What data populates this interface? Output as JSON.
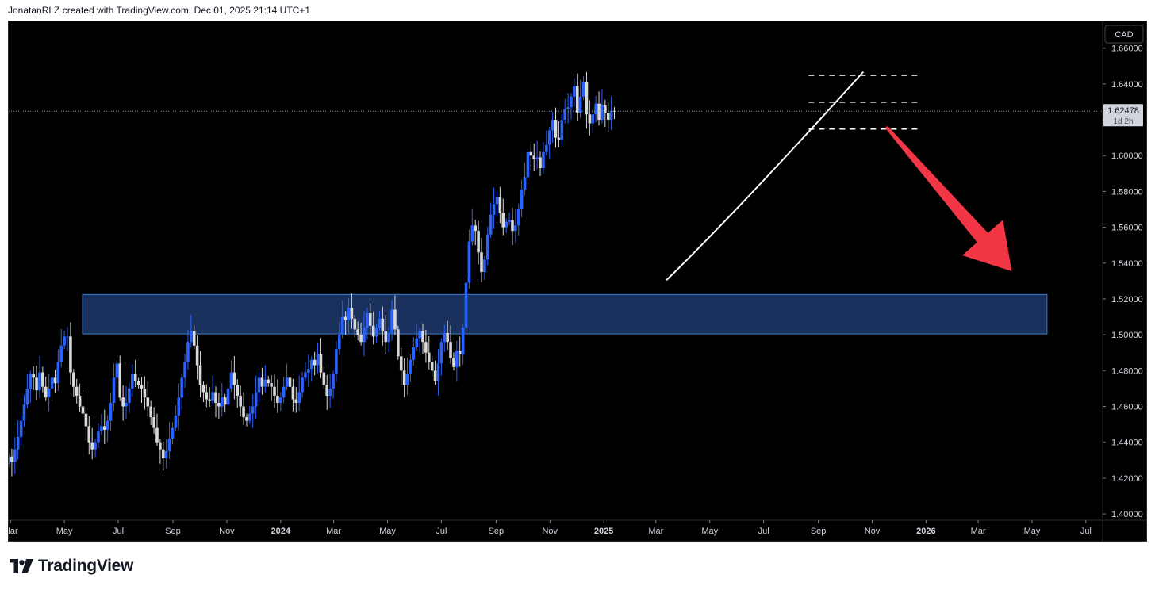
{
  "header": {
    "caption": "JonatanRLZ created with TradingView.com, Dec 01, 2025 21:14 UTC+1"
  },
  "brand": {
    "name": "TradingView",
    "icon": "tradingview-logo-icon"
  },
  "colors": {
    "background": "#000000",
    "bull": "#2962ff",
    "bear": "#d9d9d9",
    "zone_fill": "#1e3a6e",
    "zone_border": "#3d7fd1",
    "arrow": "#f23645",
    "curve": "#ffffff",
    "levels": "#ffffff"
  },
  "chart_data": {
    "type": "candlestick",
    "currency": "CAD",
    "timeframe": "1W",
    "current_price": 1.62478,
    "countdown": "1d 2h",
    "y_ticks": [
      1.66,
      1.64,
      1.62,
      1.6,
      1.58,
      1.56,
      1.54,
      1.52,
      1.5,
      1.48,
      1.46,
      1.44,
      1.42,
      1.4
    ],
    "y_tick_labels": [
      "1.66000",
      "1.64000",
      "1.62000",
      "1.60000",
      "1.58000",
      "1.56000",
      "1.54000",
      "1.52000",
      "1.50000",
      "1.48000",
      "1.46000",
      "1.44000",
      "1.42000",
      "1.40000"
    ],
    "ylim": [
      1.3965,
      1.6749
    ],
    "x_range": [
      "2023-02-27",
      "2026-07-20"
    ],
    "x_ticks": [
      {
        "label": "Mar",
        "date": "2023-03-01",
        "bold": false
      },
      {
        "label": "May",
        "date": "2023-05-01",
        "bold": false
      },
      {
        "label": "Jul",
        "date": "2023-07-01",
        "bold": false
      },
      {
        "label": "Sep",
        "date": "2023-09-01",
        "bold": false
      },
      {
        "label": "Nov",
        "date": "2023-11-01",
        "bold": false
      },
      {
        "label": "2024",
        "date": "2024-01-01",
        "bold": true
      },
      {
        "label": "Mar",
        "date": "2024-03-01",
        "bold": false
      },
      {
        "label": "May",
        "date": "2024-05-01",
        "bold": false
      },
      {
        "label": "Jul",
        "date": "2024-07-01",
        "bold": false
      },
      {
        "label": "Sep",
        "date": "2024-09-01",
        "bold": false
      },
      {
        "label": "Nov",
        "date": "2024-11-01",
        "bold": false
      },
      {
        "label": "2025",
        "date": "2025-01-01",
        "bold": true
      },
      {
        "label": "Mar",
        "date": "2025-03-01",
        "bold": false
      },
      {
        "label": "May",
        "date": "2025-05-01",
        "bold": false
      },
      {
        "label": "Jul",
        "date": "2025-07-01",
        "bold": false
      },
      {
        "label": "Sep",
        "date": "2025-09-01",
        "bold": false
      },
      {
        "label": "Nov",
        "date": "2025-11-01",
        "bold": false
      },
      {
        "label": "2026",
        "date": "2026-01-01",
        "bold": true
      },
      {
        "label": "Mar",
        "date": "2026-03-01",
        "bold": false
      },
      {
        "label": "May",
        "date": "2026-05-01",
        "bold": false
      },
      {
        "label": "Jul",
        "date": "2026-07-01",
        "bold": false
      }
    ],
    "series_start": "2023-02-27",
    "period_days": 3.5,
    "closes": [
      1.432,
      1.429,
      1.436,
      1.443,
      1.452,
      1.461,
      1.47,
      1.478,
      1.476,
      1.469,
      1.479,
      1.471,
      1.465,
      1.47,
      1.476,
      1.473,
      1.485,
      1.494,
      1.499,
      1.499,
      1.479,
      1.471,
      1.466,
      1.46,
      1.456,
      1.449,
      1.44,
      1.436,
      1.44,
      1.446,
      1.449,
      1.447,
      1.452,
      1.462,
      1.476,
      1.484,
      1.465,
      1.46,
      1.462,
      1.47,
      1.478,
      1.474,
      1.472,
      1.47,
      1.465,
      1.46,
      1.454,
      1.448,
      1.44,
      1.436,
      1.431,
      1.435,
      1.442,
      1.448,
      1.455,
      1.465,
      1.476,
      1.485,
      1.496,
      1.502,
      1.494,
      1.483,
      1.472,
      1.468,
      1.464,
      1.463,
      1.468,
      1.462,
      1.46,
      1.465,
      1.461,
      1.47,
      1.479,
      1.472,
      1.466,
      1.46,
      1.454,
      1.452,
      1.456,
      1.46,
      1.468,
      1.476,
      1.471,
      1.475,
      1.473,
      1.471,
      1.466,
      1.462,
      1.465,
      1.471,
      1.476,
      1.471,
      1.464,
      1.462,
      1.468,
      1.476,
      1.479,
      1.481,
      1.486,
      1.483,
      1.489,
      1.479,
      1.472,
      1.466,
      1.47,
      1.478,
      1.492,
      1.5,
      1.51,
      1.508,
      1.515,
      1.509,
      1.503,
      1.5,
      1.496,
      1.504,
      1.512,
      1.505,
      1.499,
      1.504,
      1.509,
      1.502,
      1.496,
      1.501,
      1.514,
      1.503,
      1.488,
      1.48,
      1.472,
      1.478,
      1.486,
      1.493,
      1.498,
      1.502,
      1.496,
      1.49,
      1.485,
      1.48,
      1.474,
      1.484,
      1.496,
      1.501,
      1.496,
      1.487,
      1.482,
      1.491,
      1.489,
      1.504,
      1.529,
      1.552,
      1.561,
      1.558,
      1.546,
      1.535,
      1.542,
      1.556,
      1.567,
      1.573,
      1.577,
      1.568,
      1.56,
      1.563,
      1.564,
      1.558,
      1.561,
      1.57,
      1.581,
      1.588,
      1.602,
      1.6,
      1.598,
      1.599,
      1.593,
      1.602,
      1.606,
      1.614,
      1.62,
      1.61,
      1.609,
      1.62,
      1.626,
      1.627,
      1.633,
      1.639,
      1.624,
      1.633,
      1.641,
      1.623,
      1.618,
      1.623,
      1.629,
      1.62,
      1.628,
      1.624,
      1.62,
      1.625,
      1.6248
    ],
    "demand_zone": {
      "low": 1.5005,
      "high": 1.5225,
      "from": "2023-02-27",
      "to": "2026-05-18"
    },
    "levels": [
      {
        "price": 1.6448,
        "from": "2025-08-21",
        "to": "2025-12-25"
      },
      {
        "price": 1.6298,
        "from": "2025-08-21",
        "to": "2025-12-25"
      },
      {
        "price": 1.6148,
        "from": "2025-08-21",
        "to": "2025-12-25"
      }
    ],
    "curve": [
      {
        "date": "2025-03-13",
        "price": 1.5305
      },
      {
        "date": "2025-06-05",
        "price": 1.571
      },
      {
        "date": "2025-10-22",
        "price": 1.6468
      }
    ],
    "arrow": {
      "from": {
        "date": "2025-11-17",
        "price": 1.616
      },
      "to": {
        "date": "2026-04-08",
        "price": 1.5355
      }
    }
  }
}
